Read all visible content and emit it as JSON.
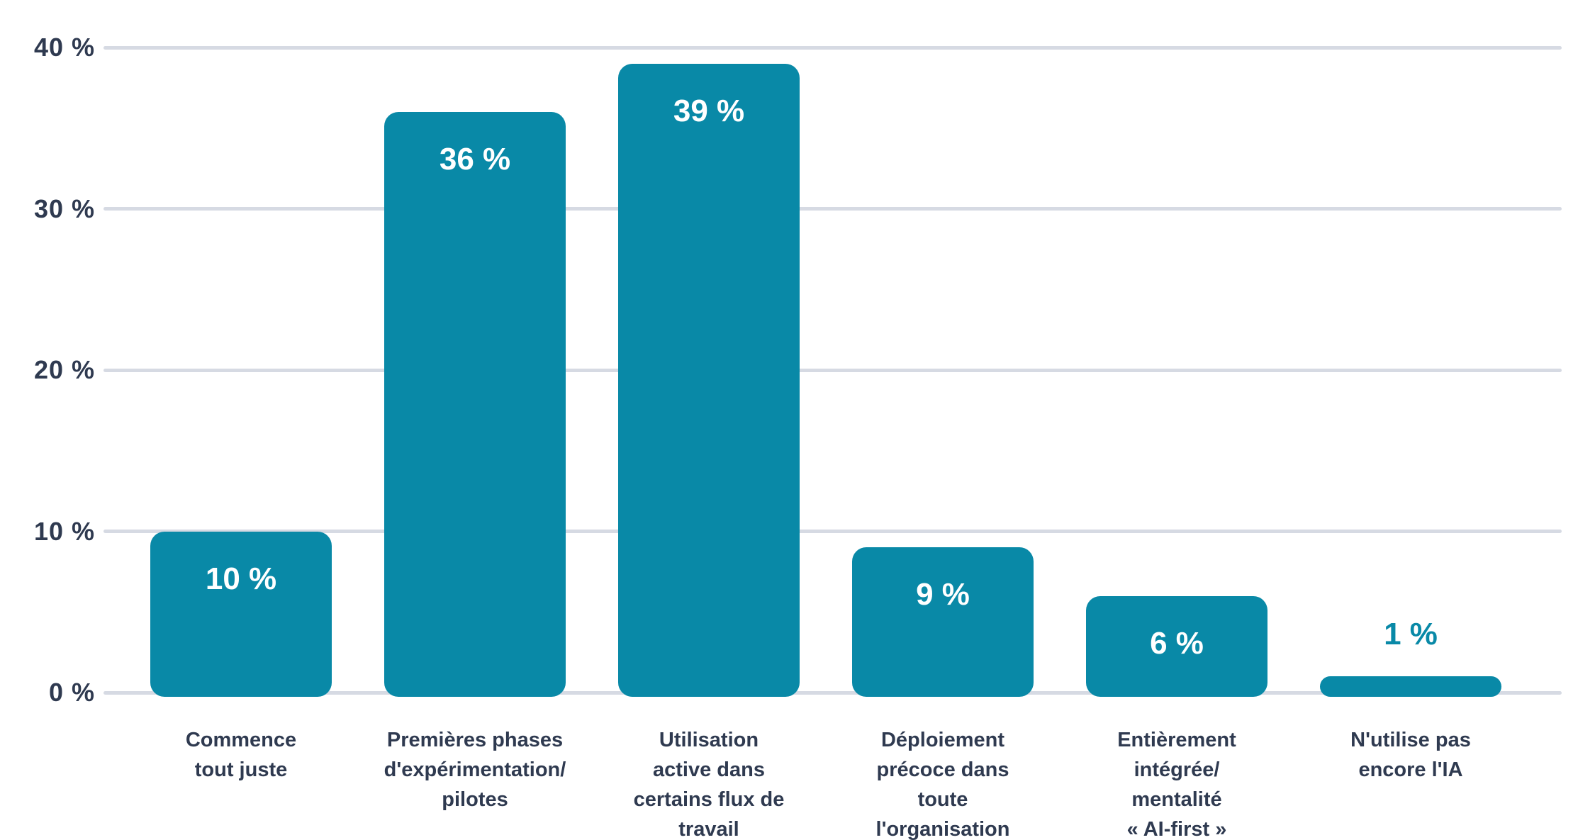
{
  "chart_data": {
    "type": "bar",
    "title": "",
    "categories": [
      [
        "Commence",
        "tout juste"
      ],
      [
        "Premières phases",
        "d'expérimentation/",
        "pilotes"
      ],
      [
        "Utilisation",
        "active dans",
        "certains flux de",
        "travail"
      ],
      [
        "Déploiement",
        "précoce dans",
        "toute",
        "l'organisation"
      ],
      [
        "Entièrement",
        "intégrée/",
        "mentalité",
        "« AI-first »"
      ],
      [
        "N'utilise pas",
        "encore l'IA"
      ]
    ],
    "values": [
      10,
      36,
      39,
      9,
      6,
      1
    ],
    "value_labels": [
      "10 %",
      "36 %",
      "39 %",
      "9 %",
      "6 %",
      "1 %"
    ],
    "y_axis": {
      "ticks": [
        0,
        10,
        20,
        30,
        40
      ],
      "tick_labels": [
        "0 %",
        "10 %",
        "20 %",
        "30 %",
        "40 %"
      ],
      "range": [
        0,
        40
      ],
      "grid": true
    },
    "legend": "none",
    "colors": {
      "bar": "#0989a7",
      "value_label_inside": "#ffffff",
      "value_label_outside": "#0989a7",
      "axis_text": "#2f3a50",
      "gridline": "#d6dae3",
      "background": "#ffffff"
    },
    "value_label_outside_threshold": 3
  }
}
